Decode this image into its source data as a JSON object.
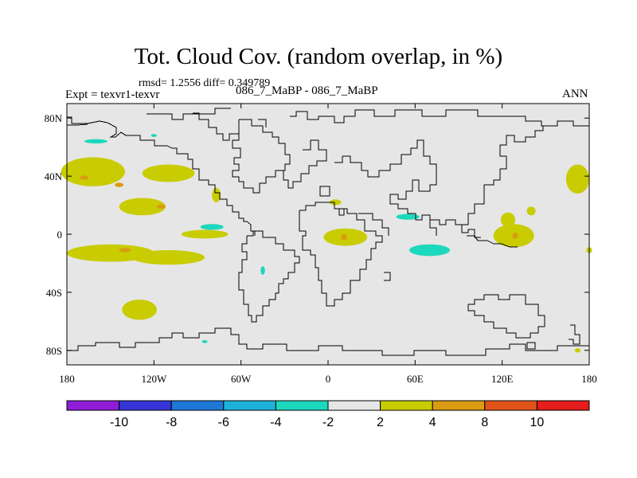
{
  "chart_data": {
    "type": "heatmap",
    "title": "Tot. Cloud Cov. (random overlap, in %)",
    "stats_label": "rmsd= 1.2556 diff= 0.349789",
    "experiment_label": "Expt = texvr1-texvr",
    "case_label": "086_7_MaBP - 086_7_MaBP",
    "season_label": "ANN",
    "xlim": [
      -180,
      180
    ],
    "ylim": [
      -90,
      90
    ],
    "x_ticks": [
      {
        "value": -180,
        "label": "180"
      },
      {
        "value": -120,
        "label": "120W"
      },
      {
        "value": -60,
        "label": "60W"
      },
      {
        "value": 0,
        "label": "0"
      },
      {
        "value": 60,
        "label": "60E"
      },
      {
        "value": 120,
        "label": "120E"
      },
      {
        "value": 180,
        "label": "180"
      }
    ],
    "y_ticks": [
      {
        "value": 80,
        "label": "80N"
      },
      {
        "value": 40,
        "label": "40N"
      },
      {
        "value": 0,
        "label": "0"
      },
      {
        "value": -40,
        "label": "40S"
      },
      {
        "value": -80,
        "label": "80S"
      }
    ],
    "colorbar": {
      "bins": [
        {
          "color": "#8f1dd6"
        },
        {
          "color": "#3636d8"
        },
        {
          "color": "#1f78d8"
        },
        {
          "color": "#1eb2d8"
        },
        {
          "color": "#1cd8bd"
        },
        {
          "color": "#e6e6e6"
        },
        {
          "color": "#c8cc00"
        },
        {
          "color": "#d99c12"
        },
        {
          "color": "#e0541c"
        },
        {
          "color": "#e41c1c"
        }
      ],
      "labels": [
        "-10",
        "-8",
        "-6",
        "-4",
        "-2",
        "2",
        "4",
        "8",
        "10"
      ]
    },
    "anomaly_regions": [
      {
        "lon": -162,
        "lat": 43,
        "rlon": 22,
        "rlat": 10,
        "color": "#c8cc00"
      },
      {
        "lon": -110,
        "lat": 42,
        "rlon": 18,
        "rlat": 6,
        "color": "#c8cc00"
      },
      {
        "lon": -128,
        "lat": 19,
        "rlon": 16,
        "rlat": 6,
        "color": "#c8cc00"
      },
      {
        "lon": -77,
        "lat": 27,
        "rlon": 3,
        "rlat": 5,
        "color": "#c8cc00"
      },
      {
        "lon": -85,
        "lat": 0,
        "rlon": 16,
        "rlat": 3,
        "color": "#c8cc00"
      },
      {
        "lon": -150,
        "lat": -13,
        "rlon": 30,
        "rlat": 6,
        "color": "#c8cc00"
      },
      {
        "lon": -110,
        "lat": -16,
        "rlon": 25,
        "rlat": 5,
        "color": "#c8cc00"
      },
      {
        "lon": -130,
        "lat": -52,
        "rlon": 12,
        "rlat": 7,
        "color": "#c8cc00"
      },
      {
        "lon": 5,
        "lat": 22,
        "rlon": 4,
        "rlat": 2,
        "color": "#c8cc00"
      },
      {
        "lon": 12,
        "lat": -2,
        "rlon": 15,
        "rlat": 6,
        "color": "#c8cc00"
      },
      {
        "lon": 124,
        "lat": 10,
        "rlon": 5,
        "rlat": 5,
        "color": "#c8cc00"
      },
      {
        "lon": 128,
        "lat": -1,
        "rlon": 14,
        "rlat": 8,
        "color": "#c8cc00"
      },
      {
        "lon": 172,
        "lat": 38,
        "rlon": 8,
        "rlat": 10,
        "color": "#c8cc00"
      },
      {
        "lon": 140,
        "lat": 16,
        "rlon": 3,
        "rlat": 3,
        "color": "#c8cc00"
      },
      {
        "lon": -168,
        "lat": 39,
        "rlon": 3,
        "rlat": 1.5,
        "color": "#d99c12"
      },
      {
        "lon": -144,
        "lat": 34,
        "rlon": 3,
        "rlat": 1.5,
        "color": "#d99c12"
      },
      {
        "lon": -115,
        "lat": 19,
        "rlon": 3,
        "rlat": 1.5,
        "color": "#d99c12"
      },
      {
        "lon": 11,
        "lat": -2,
        "rlon": 2,
        "rlat": 2,
        "color": "#d99c12"
      },
      {
        "lon": 129,
        "lat": -1,
        "rlon": 2,
        "rlat": 2,
        "color": "#d99c12"
      },
      {
        "lon": -140,
        "lat": -11,
        "rlon": 4,
        "rlat": 1.5,
        "color": "#d99c12"
      },
      {
        "lon": -160,
        "lat": 64,
        "rlon": 8,
        "rlat": 1.5,
        "color": "#1cd8bd"
      },
      {
        "lon": -80,
        "lat": 5,
        "rlon": 8,
        "rlat": 2,
        "color": "#1cd8bd"
      },
      {
        "lon": 55,
        "lat": 12,
        "rlon": 8,
        "rlat": 2,
        "color": "#1cd8bd"
      },
      {
        "lon": 70,
        "lat": -11,
        "rlon": 14,
        "rlat": 4,
        "color": "#1cd8bd"
      },
      {
        "lon": -45,
        "lat": -25,
        "rlon": 1.5,
        "rlat": 3,
        "color": "#1cd8bd"
      },
      {
        "lon": -120,
        "lat": 68,
        "rlon": 2,
        "rlat": 1,
        "color": "#1cd8bd"
      },
      {
        "lon": -85,
        "lat": -74,
        "rlon": 2,
        "rlat": 1,
        "color": "#1cd8bd"
      },
      {
        "lon": 180,
        "lat": -11,
        "rlon": 2,
        "rlat": 2,
        "color": "#c8cc00"
      },
      {
        "lon": 172,
        "lat": -80,
        "rlon": 2,
        "rlat": 1.5,
        "color": "#c8cc00"
      }
    ]
  }
}
